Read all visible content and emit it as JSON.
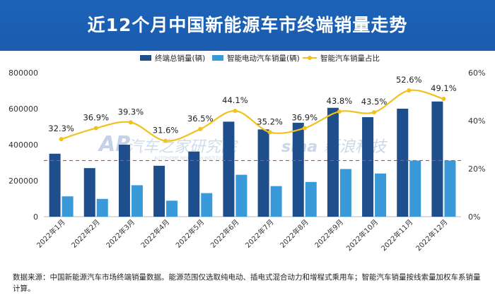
{
  "header": {
    "title": "近12个月中国新能源车市终端销量走势"
  },
  "watermarks": {
    "autohome": "汽车之家研究院",
    "autohome_sub": "AUTOHOME RESEARCH INSTITUTE",
    "sina": "新浪科技"
  },
  "footnote": "数据来源：中国新能源汽车市场终端销量数据。能源范围仅选取纯电动、插电式混合动力和增程式乘用车；智能汽车销量按线索量加权车系销量计算。",
  "colors": {
    "total_bar": "#1f4e8c",
    "smart_bar": "#3a9ad9",
    "share_line": "#f2c11b",
    "ref_line": "#e0403a",
    "axis_text": "#333333"
  },
  "chart_data": {
    "type": "bar",
    "categories": [
      "2022年1月",
      "2022年2月",
      "2022年3月",
      "2022年4月",
      "2022年5月",
      "2022年6月",
      "2022年7月",
      "2022年8月",
      "2022年9月",
      "2022年10月",
      "2022年11月",
      "2022年12月"
    ],
    "series": [
      {
        "name": "终端总销量(辆)",
        "kind": "bar",
        "axis": "left",
        "values": [
          350000,
          270000,
          400000,
          283000,
          362000,
          528000,
          485000,
          522000,
          605000,
          553000,
          600000,
          640000
        ]
      },
      {
        "name": "智能电动汽车销量(辆)",
        "kind": "bar",
        "axis": "left",
        "values": [
          113000,
          99000,
          175000,
          89000,
          131000,
          233000,
          170000,
          193000,
          265000,
          240000,
          312000,
          312000
        ]
      },
      {
        "name": "智能汽车销量占比",
        "kind": "line",
        "axis": "right",
        "values": [
          32.3,
          36.9,
          39.3,
          31.6,
          36.5,
          44.1,
          35.2,
          36.9,
          43.8,
          43.5,
          52.6,
          49.1
        ],
        "labels": [
          "32.3%",
          "36.9%",
          "39.3%",
          "31.6%",
          "36.5%",
          "44.1%",
          "35.2%",
          "36.9%",
          "43.8%",
          "43.5%",
          "52.6%",
          "49.1%"
        ]
      }
    ],
    "left_axis": {
      "range": [
        0,
        800000
      ],
      "ticks": [
        "0",
        "200000",
        "400000",
        "600000",
        "800000"
      ]
    },
    "right_axis": {
      "range": [
        0,
        60
      ],
      "ticks": [
        "0%",
        "20%",
        "40%",
        "60%"
      ]
    },
    "reference_line": {
      "value": 312000,
      "style": "dashed"
    },
    "legend_position": "top-center",
    "grid": false
  }
}
